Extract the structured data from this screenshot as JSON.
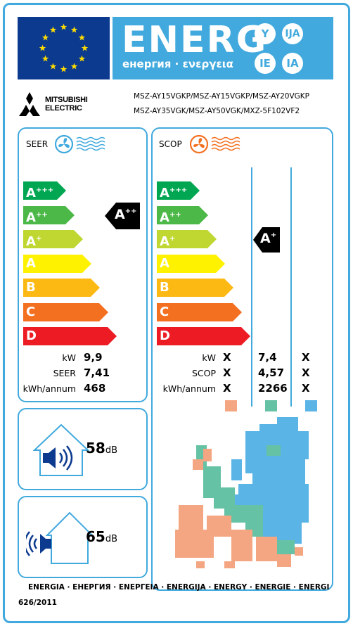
{
  "header": {
    "title": "ENERG",
    "subtitle": "енергия · ενεργεια",
    "lang_codes": [
      "Y",
      "IJA",
      "IE",
      "IA"
    ]
  },
  "brand": {
    "logo_line1": "MITSUBISHI",
    "logo_line2": "ELECTRIC"
  },
  "models": {
    "line1": "MSZ-AY15VGKP/MSZ-AY15VGKP/MSZ-AY20VGKP",
    "line2": "MSZ-AY35VGK/MSZ-AY50VGK/MXZ-5F102VF2"
  },
  "scale": [
    {
      "letter": "A",
      "sup": "+++",
      "color": "#00a651"
    },
    {
      "letter": "A",
      "sup": "++",
      "color": "#4cb848"
    },
    {
      "letter": "A",
      "sup": "+",
      "color": "#bfd730"
    },
    {
      "letter": "A",
      "sup": "",
      "color": "#fff200"
    },
    {
      "letter": "B",
      "sup": "",
      "color": "#fdb913"
    },
    {
      "letter": "C",
      "sup": "",
      "color": "#f37021"
    },
    {
      "letter": "D",
      "sup": "",
      "color": "#ed1c24"
    }
  ],
  "cooling": {
    "title": "SEER",
    "icon": "fan-cooling-icon",
    "icon_color": "#41a9dd",
    "rating_letter": "A",
    "rating_sup": "++",
    "rows": [
      {
        "key": "kW",
        "value": "9,9"
      },
      {
        "key": "SEER",
        "value": "7,41"
      },
      {
        "key": "kWh/annum",
        "value": "468"
      }
    ]
  },
  "heating": {
    "title": "SCOP",
    "icon": "fan-heating-icon",
    "icon_color": "#f37021",
    "rating_letter": "A",
    "rating_sup": "+",
    "keys": [
      "kW",
      "SCOP",
      "kWh/annum"
    ],
    "columns": [
      {
        "values": [
          "X",
          "X",
          "X"
        ],
        "color": "#f4a582"
      },
      {
        "values": [
          "7,4",
          "4,57",
          "2266"
        ],
        "color": "#66c2a4"
      },
      {
        "values": [
          "X",
          "X",
          "X"
        ],
        "color": "#5ab4e5"
      }
    ]
  },
  "noise_indoor": {
    "value": "58",
    "unit": "dB",
    "icon": "indoor-speaker-icon"
  },
  "noise_outdoor": {
    "value": "65",
    "unit": "dB",
    "icon": "outdoor-speaker-icon"
  },
  "footer": {
    "languages": "ENERGIA · ЕНЕРГИЯ · ΕΝΕΡΓΕΙΑ · ENERGIJA · ENERGY · ENERGIE · ENERGI",
    "regulation": "626/2011"
  }
}
